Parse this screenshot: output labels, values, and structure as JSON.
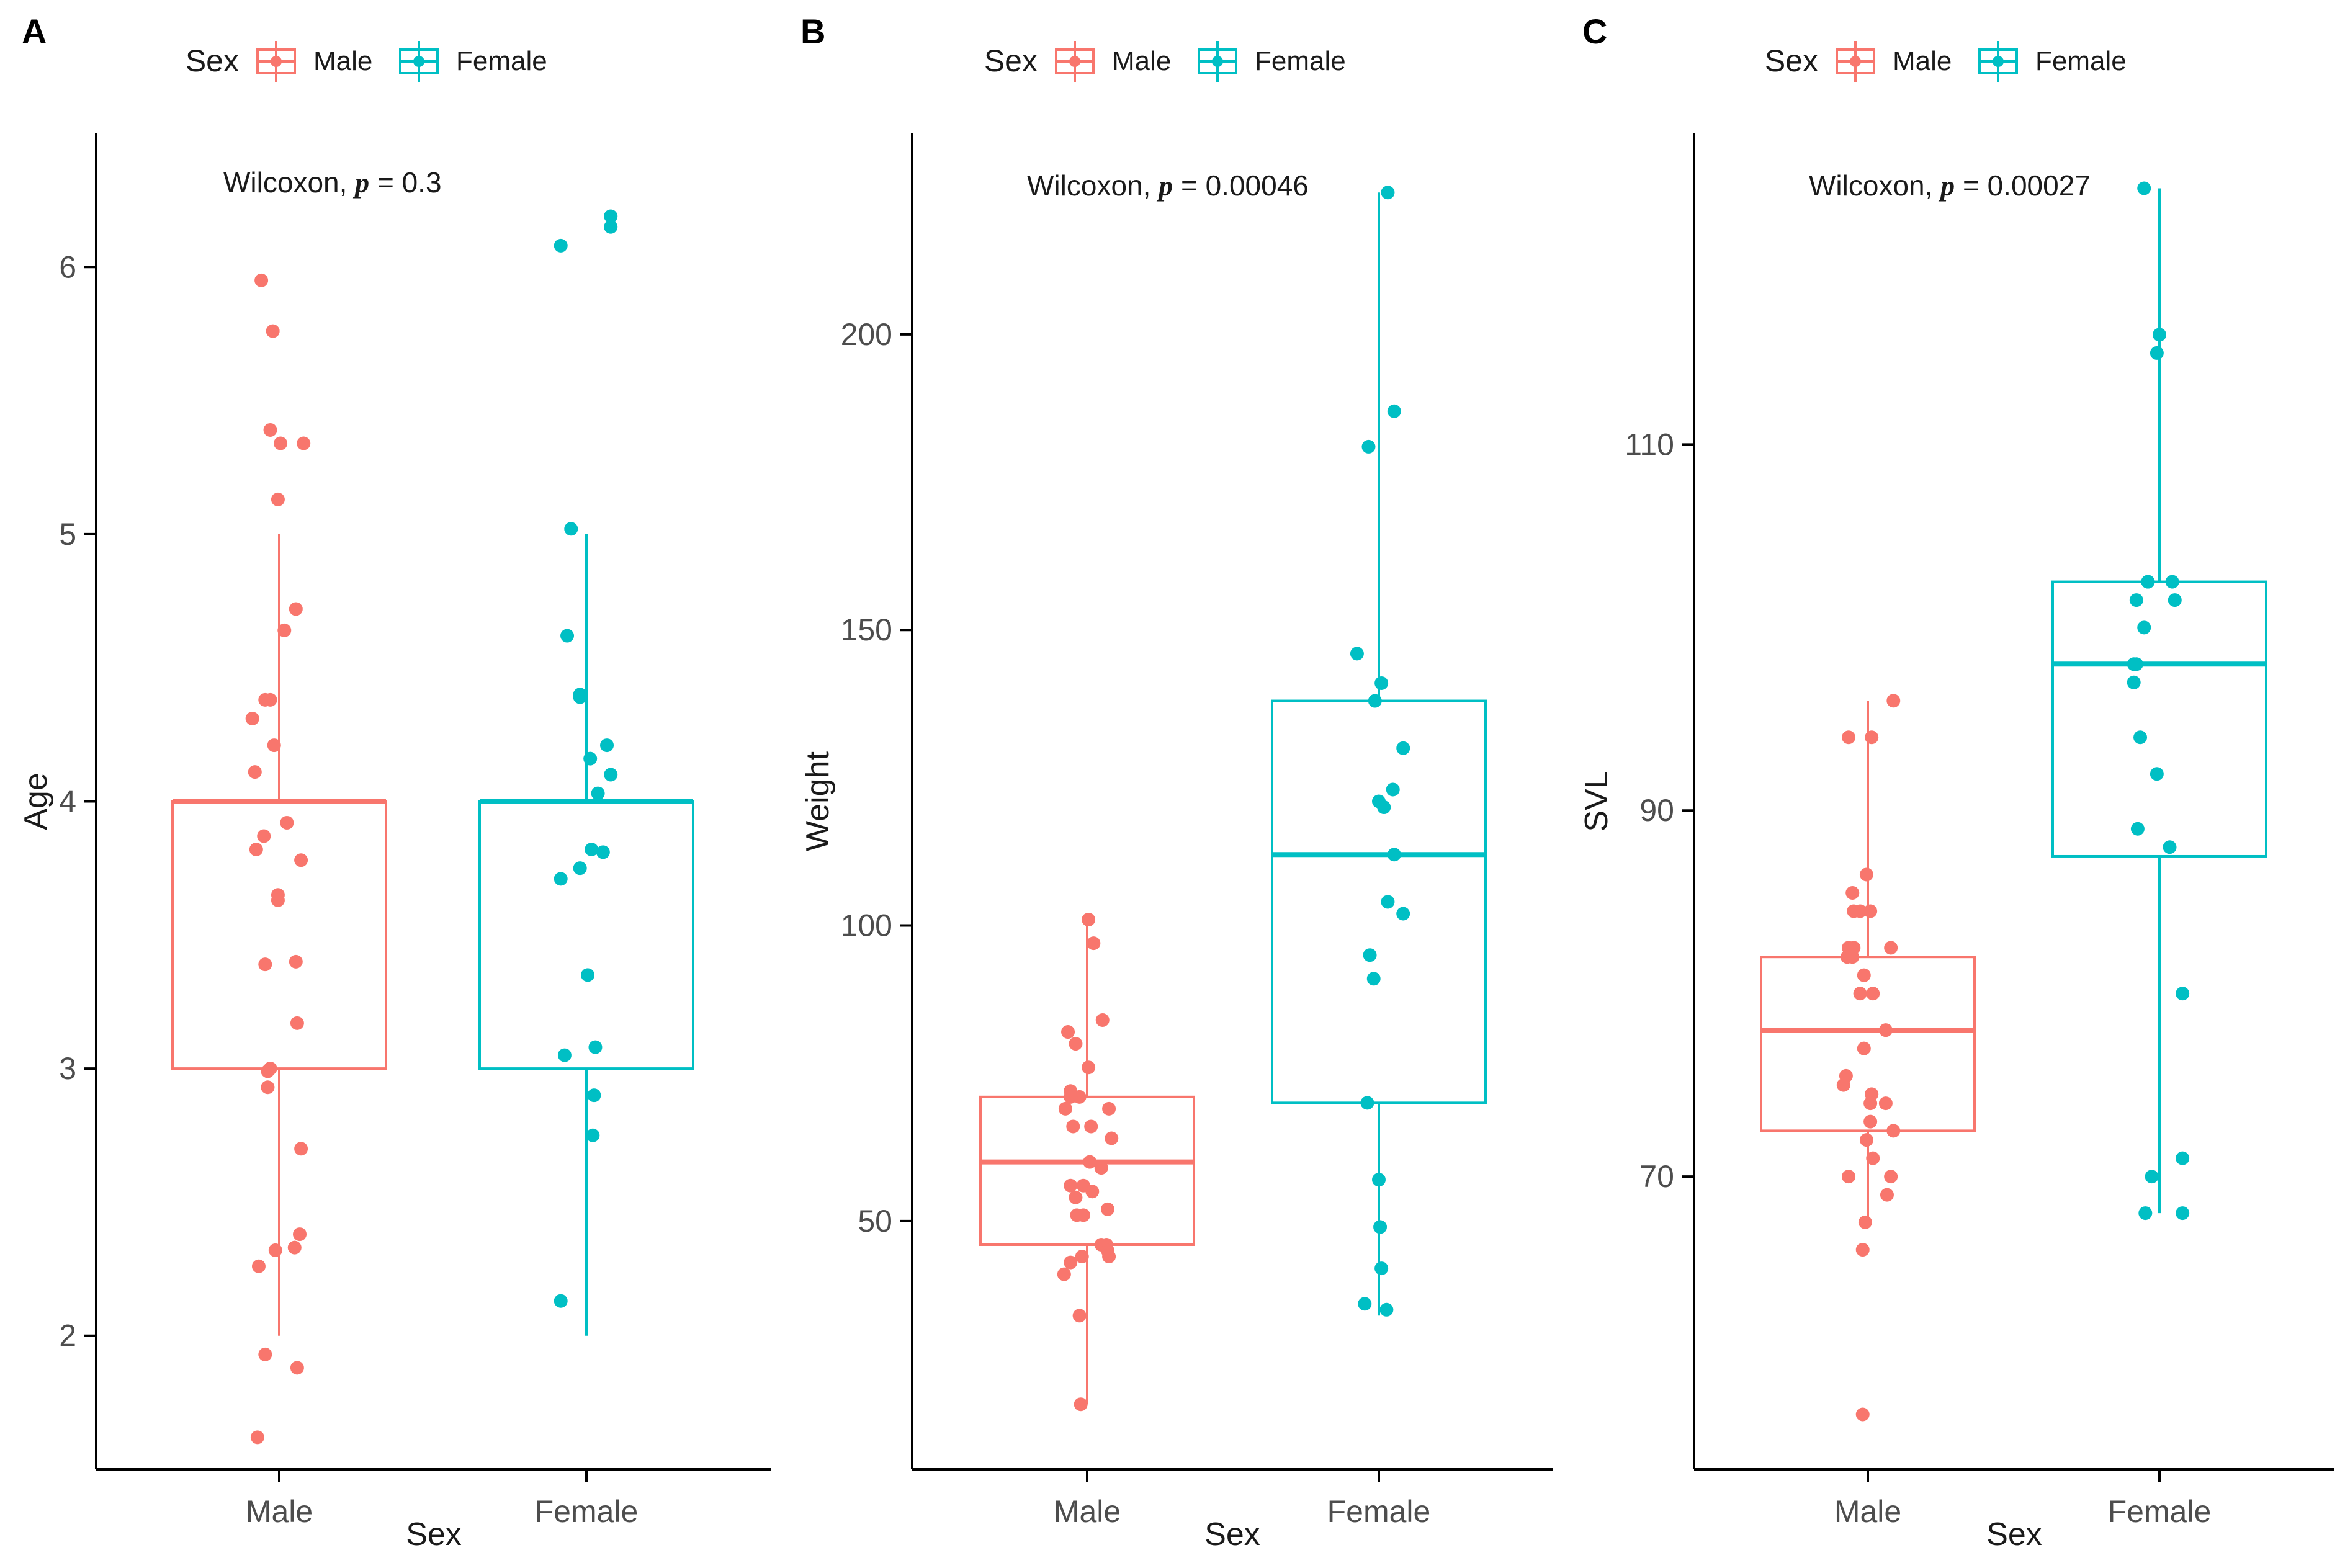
{
  "colors": {
    "male": "#F8766D",
    "female": "#00BFC4",
    "axis": "#000000",
    "text": "#1a1a1a",
    "tick_text": "#4d4d4d"
  },
  "chart_data": [
    {
      "type": "box",
      "panel_label": "A",
      "legend": {
        "title": "Sex",
        "entries": [
          "Male",
          "Female"
        ],
        "position": "top"
      },
      "xlabel": "Sex",
      "ylabel": "Age",
      "categories": [
        "Male",
        "Female"
      ],
      "ylim": [
        1.5,
        6.5
      ],
      "yticks": [
        2,
        3,
        4,
        5,
        6
      ],
      "ytick_labels": [
        "2",
        "3",
        "4",
        "5",
        "6"
      ],
      "annotation": {
        "prefix": "Wilcoxon, ",
        "p_symbol": "p",
        "value": " = 0.3"
      },
      "boxes": [
        {
          "name": "Male",
          "min": 2,
          "q1": 3,
          "median": 4,
          "q3": 4,
          "max": 5
        },
        {
          "name": "Female",
          "min": 2,
          "q1": 3,
          "median": 4,
          "q3": 4,
          "max": 5
        }
      ],
      "points": [
        {
          "name": "Male",
          "values": [
            5.95,
            5.76,
            5.39,
            5.34,
            5.34,
            5.13,
            4.72,
            4.64,
            4.38,
            4.38,
            4.31,
            4.21,
            4.11,
            3.92,
            3.87,
            3.82,
            3.78,
            3.65,
            3.63,
            3.4,
            3.39,
            3.17,
            3.0,
            2.99,
            2.93,
            2.7,
            2.38,
            2.33,
            2.32,
            2.26,
            1.93,
            1.88,
            1.62
          ],
          "jitter": [
            -0.14,
            -0.05,
            -0.07,
            0.01,
            0.19,
            -0.01,
            0.13,
            0.04,
            -0.11,
            -0.07,
            -0.21,
            -0.04,
            -0.19,
            0.06,
            -0.12,
            -0.18,
            0.17,
            -0.01,
            -0.01,
            0.13,
            -0.11,
            0.14,
            -0.07,
            -0.09,
            -0.09,
            0.17,
            0.16,
            0.12,
            -0.03,
            -0.16,
            -0.11,
            0.14,
            -0.17
          ]
        },
        {
          "name": "Female",
          "values": [
            6.19,
            6.15,
            6.08,
            5.02,
            4.62,
            4.4,
            4.39,
            4.21,
            4.16,
            4.1,
            4.03,
            3.82,
            3.81,
            3.75,
            3.71,
            3.35,
            3.08,
            3.05,
            2.9,
            2.75,
            2.13
          ],
          "jitter": [
            0.19,
            0.19,
            -0.2,
            -0.12,
            -0.15,
            -0.05,
            -0.05,
            0.16,
            0.03,
            0.19,
            0.09,
            0.04,
            0.13,
            -0.05,
            -0.2,
            0.01,
            0.07,
            -0.17,
            0.06,
            0.05,
            -0.2
          ]
        }
      ]
    },
    {
      "type": "box",
      "panel_label": "B",
      "legend": {
        "title": "Sex",
        "entries": [
          "Male",
          "Female"
        ],
        "position": "top"
      },
      "xlabel": "Sex",
      "ylabel": "Weight",
      "categories": [
        "Male",
        "Female"
      ],
      "ylim": [
        8,
        234
      ],
      "yticks": [
        50,
        100,
        150,
        200
      ],
      "ytick_labels": [
        "50",
        "100",
        "150",
        "200"
      ],
      "annotation": {
        "prefix": "Wilcoxon, ",
        "p_symbol": "p",
        "value": " = 0.00046"
      },
      "boxes": [
        {
          "name": "Male",
          "min": 19,
          "q1": 46,
          "median": 60,
          "q3": 71,
          "max": 101
        },
        {
          "name": "Female",
          "min": 34,
          "q1": 70,
          "median": 112,
          "q3": 138,
          "max": 224
        }
      ],
      "points": [
        {
          "name": "Male",
          "values": [
            101,
            97,
            84,
            82,
            80,
            76,
            72,
            71,
            71,
            69,
            69,
            66,
            66,
            64,
            60,
            59,
            56,
            56,
            55,
            54,
            52,
            51,
            51,
            46,
            46,
            45,
            44,
            44,
            43,
            41,
            34,
            19
          ],
          "jitter": [
            0.01,
            0.05,
            0.12,
            -0.15,
            -0.09,
            0.01,
            -0.13,
            -0.06,
            -0.13,
            -0.17,
            0.17,
            0.03,
            -0.11,
            0.19,
            0.02,
            0.11,
            -0.13,
            -0.03,
            0.04,
            -0.09,
            0.16,
            -0.08,
            -0.03,
            0.11,
            0.15,
            0.16,
            0.17,
            -0.04,
            -0.13,
            -0.18,
            -0.06,
            -0.05
          ]
        },
        {
          "name": "Female",
          "values": [
            224,
            187,
            181,
            146,
            141,
            138,
            130,
            123,
            121,
            120,
            112,
            104,
            102,
            95,
            91,
            70,
            57,
            49,
            42,
            36,
            35
          ],
          "jitter": [
            0.07,
            0.12,
            -0.08,
            -0.17,
            0.02,
            -0.03,
            0.19,
            0.11,
            0.0,
            0.04,
            0.12,
            0.07,
            0.19,
            -0.07,
            -0.04,
            -0.09,
            0.0,
            0.01,
            0.02,
            -0.11,
            0.06
          ]
        }
      ]
    },
    {
      "type": "box",
      "panel_label": "C",
      "legend": {
        "title": "Sex",
        "entries": [
          "Male",
          "Female"
        ],
        "position": "top"
      },
      "xlabel": "Sex",
      "ylabel": "SVL",
      "categories": [
        "Male",
        "Female"
      ],
      "ylim": [
        54,
        127
      ],
      "yticks": [
        70,
        90,
        110
      ],
      "ytick_labels": [
        "70",
        "90",
        "110"
      ],
      "annotation": {
        "prefix": "Wilcoxon, ",
        "p_symbol": "p",
        "value": " = 0.00027"
      },
      "boxes": [
        {
          "name": "Male",
          "min": 67.5,
          "q1": 72.5,
          "median": 78,
          "q3": 82,
          "max": 96
        },
        {
          "name": "Female",
          "min": 68,
          "q1": 87.5,
          "median": 98,
          "q3": 102.5,
          "max": 124
        }
      ],
      "points": [
        {
          "name": "Male",
          "values": [
            96,
            94,
            94,
            86.5,
            85.5,
            84.5,
            84.5,
            84.5,
            82.5,
            82.5,
            82.5,
            82,
            82,
            81,
            80,
            80,
            78,
            77,
            75.5,
            75,
            74.5,
            74,
            74,
            73,
            72.5,
            72,
            71,
            70,
            70,
            69,
            67.5,
            66,
            57
          ],
          "jitter": [
            0.2,
            0.03,
            -0.15,
            -0.01,
            -0.12,
            -0.11,
            -0.06,
            0.02,
            -0.15,
            -0.11,
            0.18,
            -0.16,
            -0.12,
            -0.03,
            -0.06,
            0.04,
            0.14,
            -0.03,
            -0.17,
            -0.19,
            0.03,
            0.14,
            0.02,
            0.02,
            0.2,
            -0.01,
            0.04,
            -0.15,
            0.18,
            0.15,
            -0.02,
            -0.04,
            -0.04
          ]
        },
        {
          "name": "Female",
          "values": [
            124,
            116,
            115,
            102.5,
            102.5,
            102.5,
            101.5,
            101.5,
            100,
            98,
            98,
            97,
            94,
            92,
            89,
            88,
            80,
            71,
            70,
            68,
            68
          ],
          "jitter": [
            -0.12,
            0.0,
            -0.02,
            -0.09,
            -0.09,
            0.1,
            0.12,
            -0.18,
            -0.12,
            -0.18,
            -0.2,
            -0.2,
            -0.15,
            -0.02,
            -0.17,
            0.08,
            0.18,
            0.18,
            -0.06,
            -0.11,
            0.18
          ]
        }
      ]
    }
  ]
}
